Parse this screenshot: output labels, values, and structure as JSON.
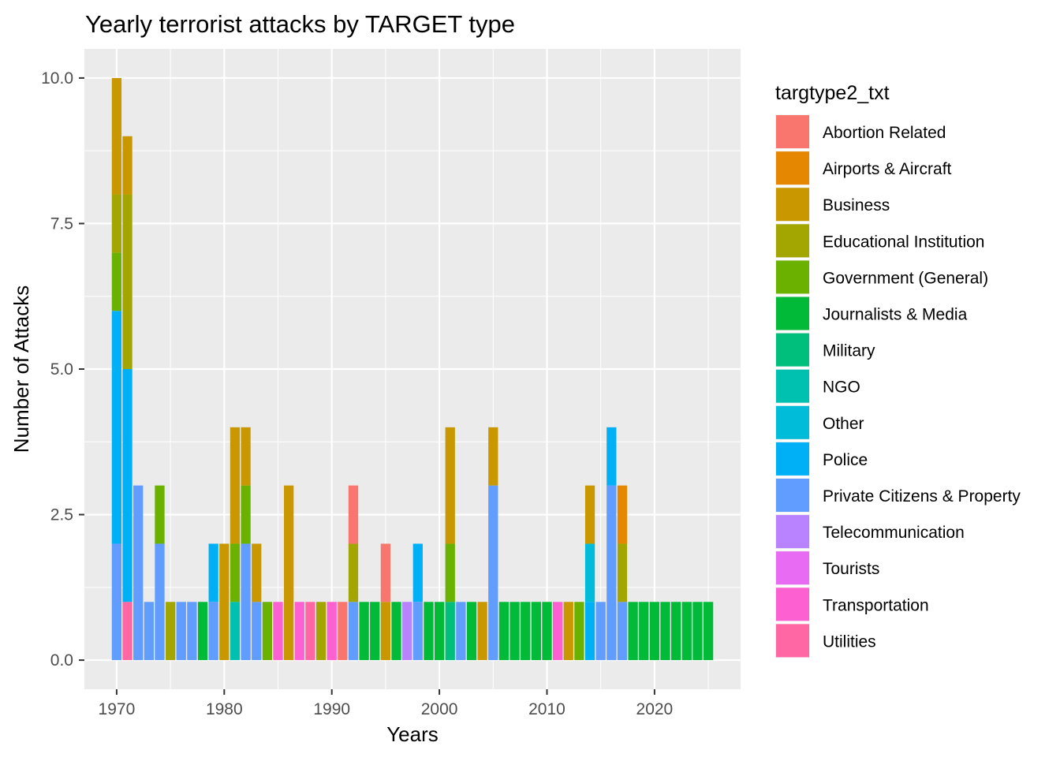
{
  "chart_data": {
    "type": "bar",
    "stacked": true,
    "title": "Yearly terrorist attacks by TARGET type",
    "xlabel": "Years",
    "ylabel": "Number of Attacks",
    "xlim": [
      1967,
      2028
    ],
    "ylim": [
      -0.5,
      10.5
    ],
    "x_ticks": [
      1970,
      1980,
      1990,
      2000,
      2010,
      2020
    ],
    "y_ticks": [
      0.0,
      2.5,
      5.0,
      7.5,
      10.0
    ],
    "y_tick_labels": [
      "0.0",
      "2.5",
      "5.0",
      "7.5",
      "10.0"
    ],
    "grid": true,
    "legend_position": "right",
    "legend_title": "targtype2_txt",
    "series": [
      {
        "name": "Abortion Related",
        "color": "#F8766D"
      },
      {
        "name": "Airports & Aircraft",
        "color": "#E58700"
      },
      {
        "name": "Business",
        "color": "#C99800"
      },
      {
        "name": "Educational Institution",
        "color": "#A3A500"
      },
      {
        "name": "Government (General)",
        "color": "#6BB100"
      },
      {
        "name": "Journalists & Media",
        "color": "#00BA38"
      },
      {
        "name": "Military",
        "color": "#00BF7D"
      },
      {
        "name": "NGO",
        "color": "#00C0AF"
      },
      {
        "name": "Other",
        "color": "#00BCD8"
      },
      {
        "name": "Police",
        "color": "#00B0F6"
      },
      {
        "name": "Private Citizens & Property",
        "color": "#619CFF"
      },
      {
        "name": "Telecommunication",
        "color": "#B983FF"
      },
      {
        "name": "Tourists",
        "color": "#E76BF3"
      },
      {
        "name": "Transportation",
        "color": "#FD61D1"
      },
      {
        "name": "Utilities",
        "color": "#FF67A4"
      }
    ],
    "bars": [
      {
        "x": 1970,
        "stack": [
          [
            "Private Citizens & Property",
            2
          ],
          [
            "Police",
            4
          ],
          [
            "Government (General)",
            1
          ],
          [
            "Educational Institution",
            1
          ],
          [
            "Business",
            2
          ]
        ]
      },
      {
        "x": 1971,
        "stack": [
          [
            "Utilities",
            1
          ],
          [
            "Police",
            4
          ],
          [
            "Educational Institution",
            3
          ],
          [
            "Business",
            1
          ]
        ]
      },
      {
        "x": 1972,
        "stack": [
          [
            "Private Citizens & Property",
            3
          ]
        ]
      },
      {
        "x": 1973,
        "stack": [
          [
            "Private Citizens & Property",
            1
          ]
        ]
      },
      {
        "x": 1974,
        "stack": [
          [
            "Private Citizens & Property",
            2
          ],
          [
            "Government (General)",
            1
          ]
        ]
      },
      {
        "x": 1975,
        "stack": [
          [
            "Educational Institution",
            1
          ]
        ]
      },
      {
        "x": 1976,
        "stack": [
          [
            "Private Citizens & Property",
            1
          ]
        ]
      },
      {
        "x": 1977,
        "stack": [
          [
            "Private Citizens & Property",
            1
          ]
        ]
      },
      {
        "x": 1978,
        "stack": [
          [
            "Journalists & Media",
            1
          ]
        ]
      },
      {
        "x": 1979,
        "stack": [
          [
            "Private Citizens & Property",
            1
          ],
          [
            "Police",
            1
          ]
        ]
      },
      {
        "x": 1980,
        "stack": [
          [
            "Business",
            2
          ]
        ]
      },
      {
        "x": 1981,
        "stack": [
          [
            "NGO",
            1
          ],
          [
            "Government (General)",
            1
          ],
          [
            "Business",
            2
          ]
        ]
      },
      {
        "x": 1982,
        "stack": [
          [
            "Private Citizens & Property",
            2
          ],
          [
            "Government (General)",
            1
          ],
          [
            "Business",
            1
          ]
        ]
      },
      {
        "x": 1983,
        "stack": [
          [
            "Private Citizens & Property",
            1
          ],
          [
            "Business",
            1
          ]
        ]
      },
      {
        "x": 1984,
        "stack": [
          [
            "Government (General)",
            1
          ]
        ]
      },
      {
        "x": 1985,
        "stack": [
          [
            "Transportation",
            1
          ]
        ]
      },
      {
        "x": 1986,
        "stack": [
          [
            "Business",
            3
          ]
        ]
      },
      {
        "x": 1987,
        "stack": [
          [
            "Transportation",
            1
          ]
        ]
      },
      {
        "x": 1988,
        "stack": [
          [
            "Utilities",
            1
          ]
        ]
      },
      {
        "x": 1989,
        "stack": [
          [
            "Educational Institution",
            1
          ]
        ]
      },
      {
        "x": 1990,
        "stack": [
          [
            "Transportation",
            1
          ]
        ]
      },
      {
        "x": 1991,
        "stack": [
          [
            "Abortion Related",
            1
          ]
        ]
      },
      {
        "x": 1992,
        "stack": [
          [
            "Private Citizens & Property",
            1
          ],
          [
            "Educational Institution",
            1
          ],
          [
            "Abortion Related",
            1
          ]
        ]
      },
      {
        "x": 1993,
        "stack": [
          [
            "Journalists & Media",
            1
          ]
        ]
      },
      {
        "x": 1994,
        "stack": [
          [
            "Journalists & Media",
            1
          ]
        ]
      },
      {
        "x": 1995,
        "stack": [
          [
            "Business",
            1
          ],
          [
            "Abortion Related",
            1
          ]
        ]
      },
      {
        "x": 1996,
        "stack": [
          [
            "Journalists & Media",
            1
          ]
        ]
      },
      {
        "x": 1997,
        "stack": [
          [
            "Telecommunication",
            1
          ]
        ]
      },
      {
        "x": 1998,
        "stack": [
          [
            "Private Citizens & Property",
            1
          ],
          [
            "Police",
            1
          ]
        ]
      },
      {
        "x": 1999,
        "stack": [
          [
            "Journalists & Media",
            1
          ]
        ]
      },
      {
        "x": 2000,
        "stack": [
          [
            "Journalists & Media",
            1
          ]
        ]
      },
      {
        "x": 2001,
        "stack": [
          [
            "Military",
            1
          ],
          [
            "Government (General)",
            1
          ],
          [
            "Business",
            2
          ]
        ]
      },
      {
        "x": 2002,
        "stack": [
          [
            "Private Citizens & Property",
            1
          ]
        ]
      },
      {
        "x": 2003,
        "stack": [
          [
            "Journalists & Media",
            1
          ]
        ]
      },
      {
        "x": 2004,
        "stack": [
          [
            "Business",
            1
          ]
        ]
      },
      {
        "x": 2005,
        "stack": [
          [
            "Private Citizens & Property",
            3
          ],
          [
            "Business",
            1
          ]
        ]
      },
      {
        "x": 2006,
        "stack": [
          [
            "Journalists & Media",
            1
          ]
        ]
      },
      {
        "x": 2007,
        "stack": [
          [
            "Journalists & Media",
            1
          ]
        ]
      },
      {
        "x": 2008,
        "stack": [
          [
            "Journalists & Media",
            1
          ]
        ]
      },
      {
        "x": 2009,
        "stack": [
          [
            "Journalists & Media",
            1
          ]
        ]
      },
      {
        "x": 2010,
        "stack": [
          [
            "Journalists & Media",
            1
          ]
        ]
      },
      {
        "x": 2011,
        "stack": [
          [
            "Transportation",
            1
          ]
        ]
      },
      {
        "x": 2012,
        "stack": [
          [
            "Business",
            1
          ]
        ]
      },
      {
        "x": 2013,
        "stack": [
          [
            "Government (General)",
            1
          ]
        ]
      },
      {
        "x": 2014,
        "stack": [
          [
            "Police",
            1
          ],
          [
            "Other",
            1
          ],
          [
            "Business",
            1
          ]
        ]
      },
      {
        "x": 2015,
        "stack": [
          [
            "Private Citizens & Property",
            1
          ]
        ]
      },
      {
        "x": 2016,
        "stack": [
          [
            "Private Citizens & Property",
            3
          ],
          [
            "Police",
            1
          ]
        ]
      },
      {
        "x": 2017,
        "stack": [
          [
            "Private Citizens & Property",
            1
          ],
          [
            "Educational Institution",
            1
          ],
          [
            "Airports & Aircraft",
            1
          ]
        ]
      },
      {
        "x": 2018,
        "stack": [
          [
            "Journalists & Media",
            1
          ]
        ]
      },
      {
        "x": 2019,
        "stack": [
          [
            "Journalists & Media",
            1
          ]
        ]
      },
      {
        "x": 2020,
        "stack": [
          [
            "Journalists & Media",
            1
          ]
        ]
      },
      {
        "x": 2021,
        "stack": [
          [
            "Journalists & Media",
            1
          ]
        ]
      },
      {
        "x": 2022,
        "stack": [
          [
            "Journalists & Media",
            1
          ]
        ]
      },
      {
        "x": 2023,
        "stack": [
          [
            "Journalists & Media",
            1
          ]
        ]
      },
      {
        "x": 2024,
        "stack": [
          [
            "Journalists & Media",
            1
          ]
        ]
      },
      {
        "x": 2025,
        "stack": [
          [
            "Journalists & Media",
            1
          ]
        ]
      }
    ]
  }
}
